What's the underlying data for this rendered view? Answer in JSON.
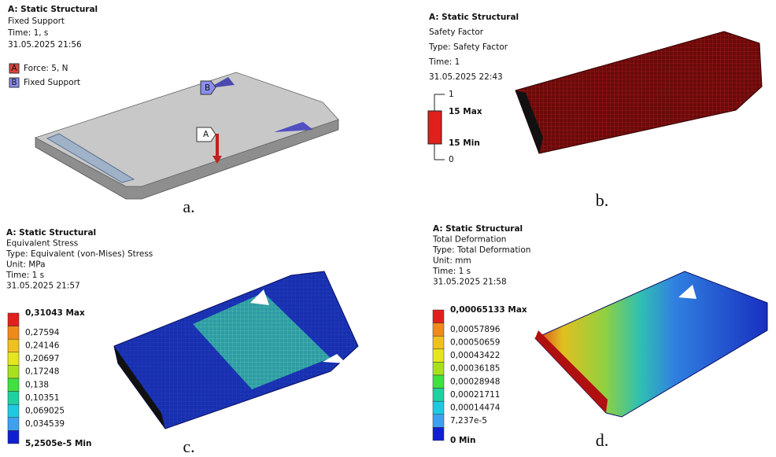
{
  "panels": [
    {
      "title": "A: Static Structural",
      "lines": [
        "Fixed Support",
        "Time: 1, s",
        "31.05.2025 21:56"
      ],
      "legend": [
        {
          "key": "A",
          "label": "Force: 5, N",
          "color": "#e0433b"
        },
        {
          "key": "B",
          "label": "Fixed Support",
          "color": "#8a8ef0"
        }
      ],
      "markers": [
        "B",
        "A"
      ],
      "caption": "a."
    },
    {
      "title": "A: Static Structural",
      "lines": [
        "Safety Factor",
        "Type: Safety Factor",
        "Time: 1",
        "31.05.2025 22:43"
      ],
      "scale": [
        "1",
        "15 Max",
        "15 Min",
        "0"
      ],
      "color": "#e0201c",
      "caption": "b."
    },
    {
      "title": "A: Static Structural",
      "lines": [
        "Equivalent Stress",
        "Type: Equivalent (von-Mises) Stress",
        "Unit: MPa",
        "Time: 1 s",
        "31.05.2025 21:57"
      ],
      "legend": [
        "0,31043 Max",
        "0,27594",
        "0,24146",
        "0,20697",
        "0,17248",
        "0,138",
        "0,10351",
        "0,069025",
        "0,034539",
        "5,2505e-5 Min"
      ],
      "colors": [
        "#e0201c",
        "#f08a1c",
        "#f0c020",
        "#e6e620",
        "#a8e020",
        "#40e040",
        "#20d0a0",
        "#20c8e0",
        "#40a0f0",
        "#1020d0"
      ],
      "caption": "c."
    },
    {
      "title": "A: Static Structural",
      "lines": [
        "Total Deformation",
        "Type: Total Deformation",
        "Unit: mm",
        "Time: 1 s",
        "31.05.2025 21:58"
      ],
      "legend": [
        "0,00065133 Max",
        "0,00057896",
        "0,00050659",
        "0,00043422",
        "0,00036185",
        "0,00028948",
        "0,00021711",
        "0,00014474",
        "7,237e-5",
        "0 Min"
      ],
      "colors": [
        "#e0201c",
        "#f08a1c",
        "#f0c020",
        "#e6e620",
        "#a8e020",
        "#40e040",
        "#20d0a0",
        "#20c8e0",
        "#40a0f0",
        "#1020d0"
      ],
      "caption": "d."
    }
  ]
}
